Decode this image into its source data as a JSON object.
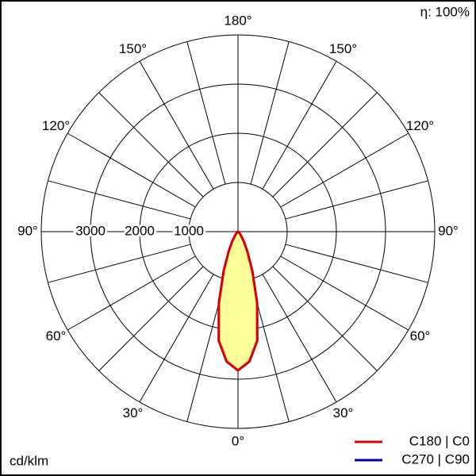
{
  "chart_data": {
    "type": "polar",
    "efficiency_label": "η: 100%",
    "unit_label": "cd/klm",
    "rlim": [
      0,
      4000
    ],
    "rticks": [
      1000,
      2000,
      3000
    ],
    "angle_ticks": [
      {
        "value": 0,
        "label": "0°"
      },
      {
        "value": 30,
        "label": "30°"
      },
      {
        "value": 60,
        "label": "60°"
      },
      {
        "value": 90,
        "label": "90°"
      },
      {
        "value": 120,
        "label": "120°"
      },
      {
        "value": 150,
        "label": "150°"
      },
      {
        "value": 180,
        "label": "180°"
      }
    ],
    "angles": [
      -90,
      -80,
      -70,
      -60,
      -50,
      -40,
      -35,
      -30,
      -25,
      -20,
      -15,
      -10,
      -5,
      0,
      5,
      10,
      15,
      20,
      25,
      30,
      35,
      40,
      50,
      60,
      70,
      80,
      90
    ],
    "fill_color": "#ffff99",
    "series": [
      {
        "name": "C270 | C90",
        "color": "#0000aa",
        "values": [
          0,
          0,
          5,
          15,
          30,
          70,
          120,
          250,
          450,
          850,
          1500,
          2250,
          2650,
          2820,
          2650,
          2250,
          1500,
          850,
          450,
          250,
          120,
          70,
          30,
          15,
          5,
          0,
          0
        ]
      },
      {
        "name": "C180 | C0",
        "color": "#dd0000",
        "values": [
          0,
          0,
          5,
          15,
          30,
          70,
          120,
          250,
          450,
          850,
          1500,
          2250,
          2650,
          2820,
          2650,
          2250,
          1500,
          850,
          450,
          250,
          120,
          70,
          30,
          15,
          5,
          0,
          0
        ]
      }
    ]
  }
}
